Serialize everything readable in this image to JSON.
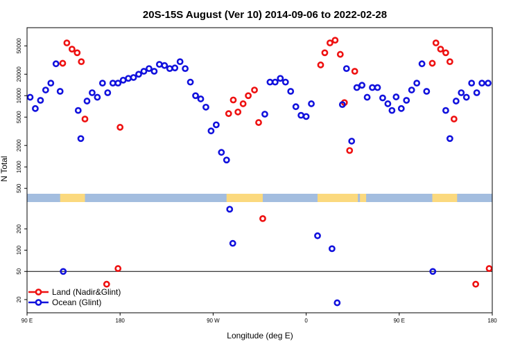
{
  "chart_data": {
    "type": "scatter",
    "title": "20S-15S August (Ver 10)   2014-09-06 to 2022-02-28",
    "xlabel": "Longitude (deg E)",
    "ylabel": "N Total",
    "x_ticks": [
      {
        "value": 90,
        "label": "90 E"
      },
      {
        "value": 180,
        "label": "180"
      },
      {
        "value": 270,
        "label": "90 W"
      },
      {
        "value": 360,
        "label": "0"
      },
      {
        "value": 450,
        "label": "90 E"
      },
      {
        "value": 540,
        "label": "180"
      }
    ],
    "y_ticks_upper": [
      {
        "value": 50000,
        "label": "50000"
      },
      {
        "value": 20000,
        "label": "20000"
      },
      {
        "value": 10000,
        "label": "10000"
      },
      {
        "value": 5000,
        "label": "5000"
      },
      {
        "value": 2000,
        "label": "2000"
      },
      {
        "value": 1000,
        "label": "1000"
      },
      {
        "value": 500,
        "label": "500"
      }
    ],
    "y_ticks_lower": [
      {
        "value": 200,
        "label": "200"
      },
      {
        "value": 100,
        "label": "100"
      },
      {
        "value": 50,
        "label": "50"
      },
      {
        "value": 20,
        "label": "20"
      }
    ],
    "xlim": [
      90,
      540
    ],
    "ylim_upper": [
      420,
      90000
    ],
    "ylim_lower": [
      13,
      480
    ],
    "reference_line": 50,
    "land_mask_colors": {
      "ocean": "#a3bddf",
      "land": "#fbd97e"
    },
    "land_intervals": [
      [
        122,
        146
      ],
      [
        283,
        318
      ],
      [
        371,
        410
      ],
      [
        412,
        418
      ],
      [
        482,
        506
      ]
    ],
    "series": [
      {
        "name": "Land (Nadir&Glint)",
        "color": "#ee1111",
        "points": [
          {
            "x": 124.5,
            "y": 28500
          },
          {
            "x": 128.5,
            "y": 55000
          },
          {
            "x": 133.5,
            "y": 45000
          },
          {
            "x": 138.5,
            "y": 40000
          },
          {
            "x": 142.5,
            "y": 30000
          },
          {
            "x": 146,
            "y": 4700
          },
          {
            "x": 167,
            "y": 33
          },
          {
            "x": 178,
            "y": 55
          },
          {
            "x": 180,
            "y": 3600
          },
          {
            "x": 285,
            "y": 5600
          },
          {
            "x": 289.5,
            "y": 8700
          },
          {
            "x": 294,
            "y": 5900
          },
          {
            "x": 299,
            "y": 7700
          },
          {
            "x": 304,
            "y": 10000
          },
          {
            "x": 310,
            "y": 12000
          },
          {
            "x": 314,
            "y": 4200
          },
          {
            "x": 318,
            "y": 280
          },
          {
            "x": 374,
            "y": 27000
          },
          {
            "x": 378,
            "y": 40000
          },
          {
            "x": 383,
            "y": 55000
          },
          {
            "x": 388,
            "y": 60000
          },
          {
            "x": 393,
            "y": 38000
          },
          {
            "x": 397,
            "y": 8000
          },
          {
            "x": 402,
            "y": 1700
          },
          {
            "x": 407,
            "y": 22000
          },
          {
            "x": 482,
            "y": 28500
          },
          {
            "x": 485.5,
            "y": 55000
          },
          {
            "x": 490,
            "y": 45000
          },
          {
            "x": 495,
            "y": 40000
          },
          {
            "x": 499,
            "y": 30000
          },
          {
            "x": 503,
            "y": 4700
          },
          {
            "x": 524,
            "y": 33
          },
          {
            "x": 537,
            "y": 55
          }
        ]
      },
      {
        "name": "Ocean (Glint)",
        "color": "#1111dd",
        "points": [
          {
            "x": 93,
            "y": 9500
          },
          {
            "x": 98,
            "y": 6600
          },
          {
            "x": 103,
            "y": 8600
          },
          {
            "x": 108,
            "y": 12000
          },
          {
            "x": 113,
            "y": 15000
          },
          {
            "x": 118,
            "y": 28000
          },
          {
            "x": 122,
            "y": 11500
          },
          {
            "x": 125,
            "y": 50
          },
          {
            "x": 139.5,
            "y": 6200
          },
          {
            "x": 142,
            "y": 2500
          },
          {
            "x": 148,
            "y": 8400
          },
          {
            "x": 153,
            "y": 11000
          },
          {
            "x": 158,
            "y": 9500
          },
          {
            "x": 163,
            "y": 15000
          },
          {
            "x": 168,
            "y": 11000
          },
          {
            "x": 173,
            "y": 15000
          },
          {
            "x": 178,
            "y": 15000
          },
          {
            "x": 183,
            "y": 16500
          },
          {
            "x": 188,
            "y": 17500
          },
          {
            "x": 193,
            "y": 18000
          },
          {
            "x": 198,
            "y": 20000
          },
          {
            "x": 203,
            "y": 22000
          },
          {
            "x": 208,
            "y": 24000
          },
          {
            "x": 213,
            "y": 22000
          },
          {
            "x": 218,
            "y": 27500
          },
          {
            "x": 223,
            "y": 26500
          },
          {
            "x": 228,
            "y": 24000
          },
          {
            "x": 233,
            "y": 24500
          },
          {
            "x": 238,
            "y": 30000
          },
          {
            "x": 243,
            "y": 24000
          },
          {
            "x": 248,
            "y": 15500
          },
          {
            "x": 253,
            "y": 10000
          },
          {
            "x": 258,
            "y": 9000
          },
          {
            "x": 263,
            "y": 6900
          },
          {
            "x": 268,
            "y": 3200
          },
          {
            "x": 273,
            "y": 3900
          },
          {
            "x": 278,
            "y": 1600
          },
          {
            "x": 283,
            "y": 1250
          },
          {
            "x": 286,
            "y": 380
          },
          {
            "x": 289,
            "y": 125
          },
          {
            "x": 320,
            "y": 5500
          },
          {
            "x": 325,
            "y": 15500
          },
          {
            "x": 330,
            "y": 15500
          },
          {
            "x": 335,
            "y": 17500
          },
          {
            "x": 340,
            "y": 15500
          },
          {
            "x": 345,
            "y": 11500
          },
          {
            "x": 350,
            "y": 7000
          },
          {
            "x": 355,
            "y": 5300
          },
          {
            "x": 360,
            "y": 5100
          },
          {
            "x": 365,
            "y": 7700
          },
          {
            "x": 371,
            "y": 160
          },
          {
            "x": 385,
            "y": 105
          },
          {
            "x": 390,
            "y": 18
          },
          {
            "x": 395,
            "y": 7500
          },
          {
            "x": 399,
            "y": 24000
          },
          {
            "x": 404,
            "y": 2300
          },
          {
            "x": 409,
            "y": 13000
          },
          {
            "x": 414,
            "y": 14000
          },
          {
            "x": 419,
            "y": 9500
          },
          {
            "x": 424,
            "y": 13000
          },
          {
            "x": 429,
            "y": 13000
          },
          {
            "x": 434,
            "y": 9300
          },
          {
            "x": 439,
            "y": 7700
          },
          {
            "x": 443,
            "y": 6200
          },
          {
            "x": 447,
            "y": 9600
          },
          {
            "x": 452,
            "y": 6600
          },
          {
            "x": 457,
            "y": 8600
          },
          {
            "x": 462,
            "y": 12000
          },
          {
            "x": 467,
            "y": 15000
          },
          {
            "x": 472,
            "y": 28000
          },
          {
            "x": 476.5,
            "y": 11500
          },
          {
            "x": 482.5,
            "y": 50
          },
          {
            "x": 495,
            "y": 6200
          },
          {
            "x": 499,
            "y": 2500
          },
          {
            "x": 505,
            "y": 8400
          },
          {
            "x": 510,
            "y": 11000
          },
          {
            "x": 515,
            "y": 9500
          },
          {
            "x": 520,
            "y": 15000
          },
          {
            "x": 525,
            "y": 11000
          },
          {
            "x": 530,
            "y": 15000
          },
          {
            "x": 536,
            "y": 15000
          }
        ]
      }
    ],
    "legend": {
      "position": "bottom-left"
    }
  }
}
